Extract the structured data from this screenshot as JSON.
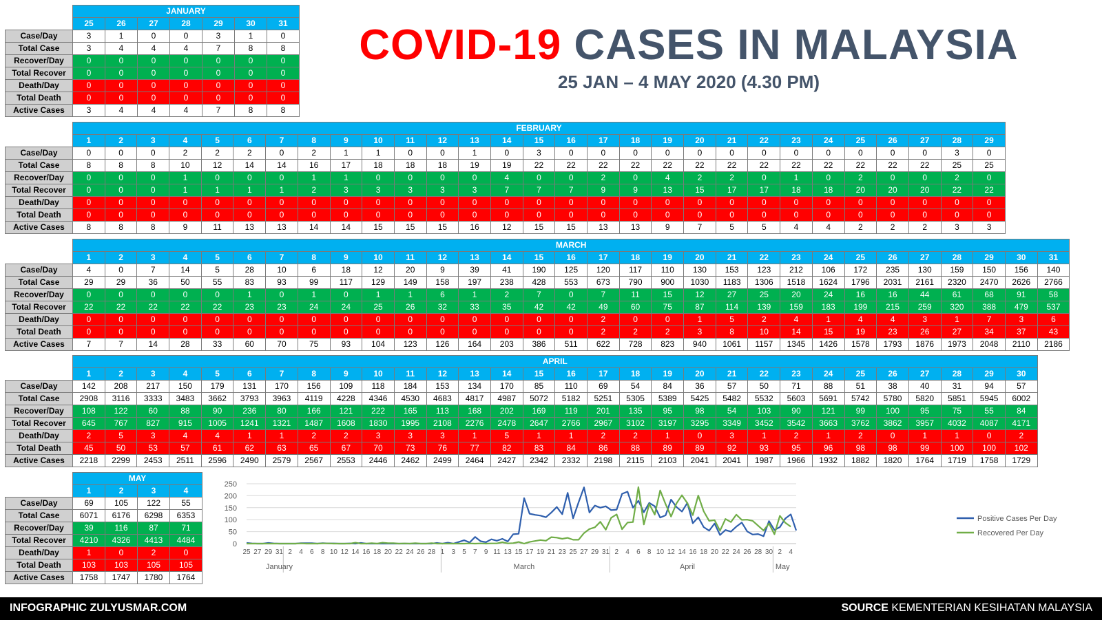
{
  "header": {
    "title_red": "COVID-19",
    "title_rest": "CASES IN MALAYSIA",
    "subtitle": "25 JAN – 4 MAY 2020 (4.30 PM)"
  },
  "row_labels": [
    "Case/Day",
    "Total Case",
    "Recover/Day",
    "Total Recover",
    "Death/Day",
    "Total Death",
    "Active Cases"
  ],
  "months": [
    {
      "name": "JANUARY",
      "days": [
        25,
        26,
        27,
        28,
        29,
        30,
        31
      ],
      "rows": [
        [
          3,
          1,
          0,
          0,
          3,
          1,
          0
        ],
        [
          3,
          4,
          4,
          4,
          7,
          8,
          8
        ],
        [
          0,
          0,
          0,
          0,
          0,
          0,
          0
        ],
        [
          0,
          0,
          0,
          0,
          0,
          0,
          0
        ],
        [
          0,
          0,
          0,
          0,
          0,
          0,
          0
        ],
        [
          0,
          0,
          0,
          0,
          0,
          0,
          0
        ],
        [
          3,
          4,
          4,
          4,
          7,
          8,
          8
        ]
      ]
    },
    {
      "name": "FEBRUARY",
      "days": [
        1,
        2,
        3,
        4,
        5,
        6,
        7,
        8,
        9,
        10,
        11,
        12,
        13,
        14,
        15,
        16,
        17,
        18,
        19,
        20,
        21,
        22,
        23,
        24,
        25,
        26,
        27,
        28,
        29
      ],
      "rows": [
        [
          0,
          0,
          0,
          2,
          2,
          2,
          0,
          2,
          1,
          1,
          0,
          0,
          1,
          0,
          3,
          0,
          0,
          0,
          0,
          0,
          0,
          0,
          0,
          0,
          0,
          0,
          0,
          3,
          0
        ],
        [
          8,
          8,
          8,
          10,
          12,
          14,
          14,
          16,
          17,
          18,
          18,
          18,
          19,
          19,
          22,
          22,
          22,
          22,
          22,
          22,
          22,
          22,
          22,
          22,
          22,
          22,
          22,
          25,
          25
        ],
        [
          0,
          0,
          0,
          1,
          0,
          0,
          0,
          1,
          1,
          0,
          0,
          0,
          0,
          4,
          0,
          0,
          2,
          0,
          4,
          2,
          2,
          0,
          1,
          0,
          2,
          0,
          0,
          2,
          0
        ],
        [
          0,
          0,
          0,
          1,
          1,
          1,
          1,
          2,
          3,
          3,
          3,
          3,
          3,
          7,
          7,
          7,
          9,
          9,
          13,
          15,
          17,
          17,
          18,
          18,
          20,
          20,
          20,
          22,
          22
        ],
        [
          0,
          0,
          0,
          0,
          0,
          0,
          0,
          0,
          0,
          0,
          0,
          0,
          0,
          0,
          0,
          0,
          0,
          0,
          0,
          0,
          0,
          0,
          0,
          0,
          0,
          0,
          0,
          0,
          0
        ],
        [
          0,
          0,
          0,
          0,
          0,
          0,
          0,
          0,
          0,
          0,
          0,
          0,
          0,
          0,
          0,
          0,
          0,
          0,
          0,
          0,
          0,
          0,
          0,
          0,
          0,
          0,
          0,
          0,
          0
        ],
        [
          8,
          8,
          8,
          9,
          11,
          13,
          13,
          14,
          14,
          15,
          15,
          15,
          16,
          12,
          15,
          15,
          13,
          13,
          9,
          7,
          5,
          5,
          4,
          4,
          2,
          2,
          2,
          3,
          3
        ]
      ]
    },
    {
      "name": "MARCH",
      "days": [
        1,
        2,
        3,
        4,
        5,
        6,
        7,
        8,
        9,
        10,
        11,
        12,
        13,
        14,
        15,
        16,
        17,
        18,
        19,
        20,
        21,
        22,
        23,
        24,
        25,
        26,
        27,
        28,
        29,
        30,
        31
      ],
      "rows": [
        [
          4,
          0,
          7,
          14,
          5,
          28,
          10,
          6,
          18,
          12,
          20,
          9,
          39,
          41,
          190,
          125,
          120,
          117,
          110,
          130,
          153,
          123,
          212,
          106,
          172,
          235,
          130,
          159,
          150,
          156,
          140
        ],
        [
          29,
          29,
          36,
          50,
          55,
          83,
          93,
          99,
          117,
          129,
          149,
          158,
          197,
          238,
          428,
          553,
          673,
          790,
          900,
          1030,
          1183,
          1306,
          1518,
          1624,
          1796,
          2031,
          2161,
          2320,
          2470,
          2626,
          2766
        ],
        [
          0,
          0,
          0,
          0,
          0,
          1,
          0,
          1,
          0,
          1,
          1,
          6,
          1,
          2,
          7,
          0,
          7,
          11,
          15,
          12,
          27,
          25,
          20,
          24,
          16,
          16,
          44,
          61,
          68,
          91,
          58
        ],
        [
          22,
          22,
          22,
          22,
          22,
          23,
          23,
          24,
          24,
          25,
          26,
          32,
          33,
          35,
          42,
          42,
          49,
          60,
          75,
          87,
          114,
          139,
          159,
          183,
          199,
          215,
          259,
          320,
          388,
          479,
          537
        ],
        [
          0,
          0,
          0,
          0,
          0,
          0,
          0,
          0,
          0,
          0,
          0,
          0,
          0,
          0,
          0,
          0,
          2,
          0,
          0,
          1,
          5,
          2,
          4,
          1,
          4,
          4,
          3,
          1,
          7,
          3,
          6
        ],
        [
          0,
          0,
          0,
          0,
          0,
          0,
          0,
          0,
          0,
          0,
          0,
          0,
          0,
          0,
          0,
          0,
          2,
          2,
          2,
          3,
          8,
          10,
          14,
          15,
          19,
          23,
          26,
          27,
          34,
          37,
          43
        ],
        [
          7,
          7,
          14,
          28,
          33,
          60,
          70,
          75,
          93,
          104,
          123,
          126,
          164,
          203,
          386,
          511,
          622,
          728,
          823,
          940,
          1061,
          1157,
          1345,
          1426,
          1578,
          1793,
          1876,
          1973,
          2048,
          2110,
          2186
        ]
      ]
    },
    {
      "name": "APRIL",
      "days": [
        1,
        2,
        3,
        4,
        5,
        6,
        7,
        8,
        9,
        10,
        11,
        12,
        13,
        14,
        15,
        16,
        17,
        18,
        19,
        20,
        21,
        22,
        23,
        24,
        25,
        26,
        27,
        28,
        29,
        30
      ],
      "rows": [
        [
          142,
          208,
          217,
          150,
          179,
          131,
          170,
          156,
          109,
          118,
          184,
          153,
          134,
          170,
          85,
          110,
          69,
          54,
          84,
          36,
          57,
          50,
          71,
          88,
          51,
          38,
          40,
          31,
          94,
          57
        ],
        [
          2908,
          3116,
          3333,
          3483,
          3662,
          3793,
          3963,
          4119,
          4228,
          4346,
          4530,
          4683,
          4817,
          4987,
          5072,
          5182,
          5251,
          5305,
          5389,
          5425,
          5482,
          5532,
          5603,
          5691,
          5742,
          5780,
          5820,
          5851,
          5945,
          6002
        ],
        [
          108,
          122,
          60,
          88,
          90,
          236,
          80,
          166,
          121,
          222,
          165,
          113,
          168,
          202,
          169,
          119,
          201,
          135,
          95,
          98,
          54,
          103,
          90,
          121,
          99,
          100,
          95,
          75,
          55,
          84
        ],
        [
          645,
          767,
          827,
          915,
          1005,
          1241,
          1321,
          1487,
          1608,
          1830,
          1995,
          2108,
          2276,
          2478,
          2647,
          2766,
          2967,
          3102,
          3197,
          3295,
          3349,
          3452,
          3542,
          3663,
          3762,
          3862,
          3957,
          4032,
          4087,
          4171
        ],
        [
          2,
          5,
          3,
          4,
          4,
          1,
          1,
          2,
          2,
          3,
          3,
          3,
          1,
          5,
          1,
          1,
          2,
          2,
          1,
          0,
          3,
          1,
          2,
          1,
          2,
          0,
          1,
          1,
          0,
          2
        ],
        [
          45,
          50,
          53,
          57,
          61,
          62,
          63,
          65,
          67,
          70,
          73,
          76,
          77,
          82,
          83,
          84,
          86,
          88,
          89,
          89,
          92,
          93,
          95,
          96,
          98,
          98,
          99,
          100,
          100,
          102
        ],
        [
          2218,
          2299,
          2453,
          2511,
          2596,
          2490,
          2579,
          2567,
          2553,
          2446,
          2462,
          2499,
          2464,
          2427,
          2342,
          2332,
          2198,
          2115,
          2103,
          2041,
          2041,
          1987,
          1966,
          1932,
          1882,
          1820,
          1764,
          1719,
          1758,
          1729
        ]
      ]
    },
    {
      "name": "MAY",
      "days": [
        1,
        2,
        3,
        4
      ],
      "rows": [
        [
          69,
          105,
          122,
          55
        ],
        [
          6071,
          6176,
          6298,
          6353
        ],
        [
          39,
          116,
          87,
          71
        ],
        [
          4210,
          4326,
          4413,
          4484
        ],
        [
          1,
          0,
          2,
          0
        ],
        [
          103,
          103,
          105,
          105
        ],
        [
          1758,
          1747,
          1780,
          1764
        ]
      ]
    }
  ],
  "chart_data": {
    "type": "line",
    "title": "",
    "xlabel": "",
    "ylabel": "",
    "ylim": [
      0,
      250
    ],
    "yticks": [
      0,
      50,
      100,
      150,
      200,
      250
    ],
    "x_tick_labels": [
      "25",
      "27",
      "29",
      "31",
      "2",
      "4",
      "6",
      "8",
      "10",
      "12",
      "14",
      "16",
      "18",
      "20",
      "22",
      "24",
      "26",
      "28",
      "1",
      "3",
      "5",
      "7",
      "9",
      "11",
      "13",
      "15",
      "17",
      "19",
      "21",
      "23",
      "25",
      "27",
      "29",
      "31",
      "2",
      "4",
      "6",
      "8",
      "10",
      "12",
      "14",
      "16",
      "18",
      "20",
      "22",
      "24",
      "26",
      "28",
      "30",
      "2",
      "4"
    ],
    "month_labels": [
      "January",
      "March",
      "April",
      "May"
    ],
    "grid": true,
    "legend_position": "right",
    "series": [
      {
        "name": "Positive Cases Per Day",
        "color": "#2f5fad",
        "values": [
          3,
          1,
          0,
          0,
          3,
          1,
          0,
          0,
          0,
          0,
          2,
          2,
          2,
          0,
          2,
          1,
          1,
          0,
          0,
          1,
          0,
          3,
          0,
          0,
          0,
          0,
          0,
          0,
          0,
          0,
          0,
          0,
          0,
          0,
          0,
          3,
          0,
          4,
          0,
          7,
          14,
          5,
          28,
          10,
          6,
          18,
          12,
          20,
          9,
          39,
          41,
          190,
          125,
          120,
          117,
          110,
          130,
          153,
          123,
          212,
          106,
          172,
          235,
          130,
          159,
          150,
          156,
          140,
          142,
          208,
          217,
          150,
          179,
          131,
          170,
          156,
          109,
          118,
          184,
          153,
          134,
          170,
          85,
          110,
          69,
          54,
          84,
          36,
          57,
          50,
          71,
          88,
          51,
          38,
          40,
          31,
          94,
          57,
          69,
          105,
          122,
          55
        ]
      },
      {
        "name": "Recovered Per Day",
        "color": "#70ad47",
        "values": [
          0,
          0,
          0,
          0,
          0,
          0,
          0,
          0,
          0,
          0,
          1,
          0,
          0,
          0,
          1,
          1,
          0,
          0,
          0,
          0,
          4,
          0,
          0,
          2,
          0,
          4,
          2,
          2,
          0,
          1,
          0,
          2,
          0,
          0,
          2,
          0,
          0,
          0,
          0,
          0,
          0,
          1,
          0,
          1,
          0,
          1,
          1,
          6,
          1,
          2,
          7,
          0,
          7,
          11,
          15,
          12,
          27,
          25,
          20,
          24,
          16,
          16,
          44,
          61,
          68,
          91,
          58,
          108,
          122,
          60,
          88,
          90,
          236,
          80,
          166,
          121,
          222,
          165,
          113,
          168,
          202,
          169,
          119,
          201,
          135,
          95,
          98,
          54,
          103,
          90,
          121,
          99,
          100,
          95,
          75,
          55,
          84,
          39,
          116,
          87,
          71
        ]
      }
    ]
  },
  "footer": {
    "left": "INFOGRAPHIC ZULYUSMAR.COM",
    "source_bold": "SOURCE",
    "source_rest": "KEMENTERIAN KESIHATAN MALAYSIA"
  }
}
